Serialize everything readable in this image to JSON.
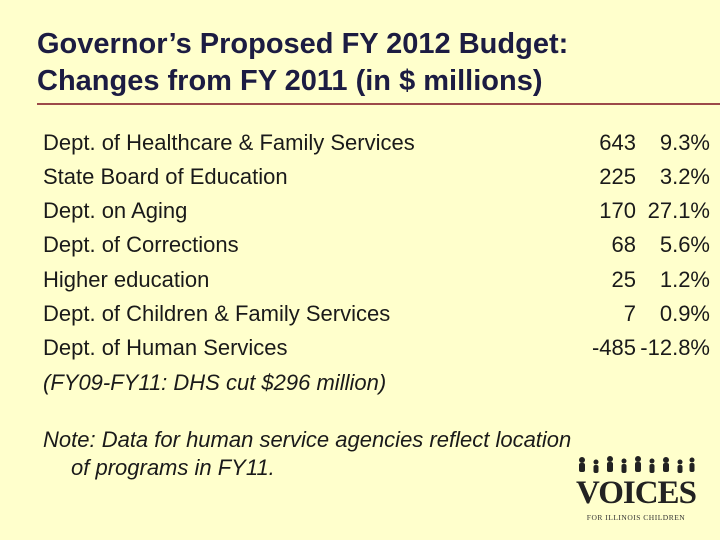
{
  "title": {
    "line1": "Governor’s Proposed FY 2012 Budget:",
    "line2": "Changes from FY 2011 (in $ millions)"
  },
  "rows": [
    {
      "dept": "Dept. of Healthcare & Family Services",
      "amount": "643",
      "pct": "9.3%"
    },
    {
      "dept": "State Board of Education",
      "amount": "225",
      "pct": "3.2%"
    },
    {
      "dept": "Dept. on Aging",
      "amount": "170",
      "pct": "27.1%"
    },
    {
      "dept": "Dept. of Corrections",
      "amount": "68",
      "pct": "5.6%"
    },
    {
      "dept": "Higher education",
      "amount": "25",
      "pct": "1.2%"
    },
    {
      "dept": "Dept. of Children & Family Services",
      "amount": "7",
      "pct": "0.9%"
    },
    {
      "dept": "Dept. of Human Services",
      "amount": "-485",
      "pct": "-12.8%"
    }
  ],
  "footnote_row": "(FY09-FY11:  DHS cut $296 million)",
  "note": {
    "line1": "Note: Data for human service agencies reflect location",
    "line2": "of programs in FY11."
  },
  "logo": {
    "word": "VOICES",
    "tagline": "FOR ILLINOIS CHILDREN"
  }
}
